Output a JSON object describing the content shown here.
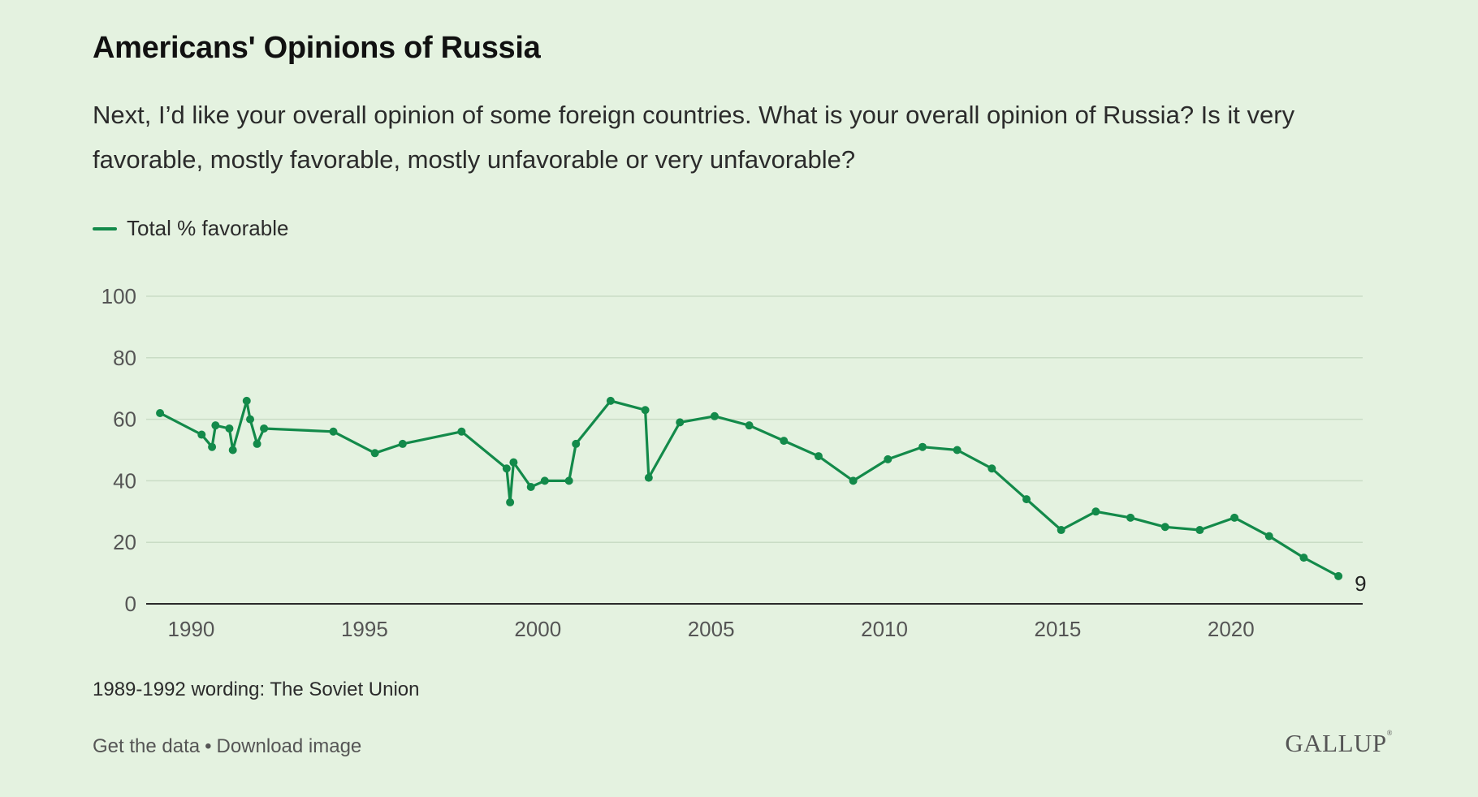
{
  "header": {
    "title": "Americans' Opinions of Russia",
    "subtitle": "Next, I’d like your overall opinion of some foreign countries. What is your overall opinion of Russia? Is it very favorable, mostly favorable, mostly unfavorable or very unfavorable?"
  },
  "footer": {
    "note": "1989-1992 wording: The Soviet Union",
    "get_data": "Get the data",
    "separator": "•",
    "download": "Download image",
    "logo": "GALLUP"
  },
  "colors": {
    "line": "#138a4a",
    "grid": "#c9dcc5",
    "axis": "#2b2b2b",
    "background": "#e4f2e0"
  },
  "chart_data": {
    "type": "line",
    "xlabel": "",
    "ylabel": "",
    "xlim": [
      1988.7,
      2023.8
    ],
    "ylim": [
      0,
      100
    ],
    "yticks": [
      0,
      20,
      40,
      60,
      80,
      100
    ],
    "xticks": [
      1990,
      1995,
      2000,
      2005,
      2010,
      2015,
      2020
    ],
    "grid": true,
    "legend": "top-left",
    "end_label": "9",
    "series": [
      {
        "name": "Total % favorable",
        "points": [
          [
            1989.1,
            62
          ],
          [
            1990.3,
            55
          ],
          [
            1990.6,
            51
          ],
          [
            1990.7,
            58
          ],
          [
            1991.1,
            57
          ],
          [
            1991.2,
            50
          ],
          [
            1991.6,
            66
          ],
          [
            1991.7,
            60
          ],
          [
            1991.9,
            52
          ],
          [
            1992.1,
            57
          ],
          [
            1994.1,
            56
          ],
          [
            1995.3,
            49
          ],
          [
            1996.1,
            52
          ],
          [
            1997.8,
            56
          ],
          [
            1999.1,
            44
          ],
          [
            1999.2,
            33
          ],
          [
            1999.3,
            46
          ],
          [
            1999.8,
            38
          ],
          [
            2000.2,
            40
          ],
          [
            2000.9,
            40
          ],
          [
            2001.1,
            52
          ],
          [
            2002.1,
            66
          ],
          [
            2003.1,
            63
          ],
          [
            2003.2,
            41
          ],
          [
            2004.1,
            59
          ],
          [
            2005.1,
            61
          ],
          [
            2006.1,
            58
          ],
          [
            2007.1,
            53
          ],
          [
            2008.1,
            48
          ],
          [
            2009.1,
            40
          ],
          [
            2010.1,
            47
          ],
          [
            2011.1,
            51
          ],
          [
            2012.1,
            50
          ],
          [
            2013.1,
            44
          ],
          [
            2014.1,
            34
          ],
          [
            2015.1,
            24
          ],
          [
            2016.1,
            30
          ],
          [
            2017.1,
            28
          ],
          [
            2018.1,
            25
          ],
          [
            2019.1,
            24
          ],
          [
            2020.1,
            28
          ],
          [
            2021.1,
            22
          ],
          [
            2022.1,
            15
          ],
          [
            2023.1,
            9
          ]
        ]
      }
    ]
  }
}
